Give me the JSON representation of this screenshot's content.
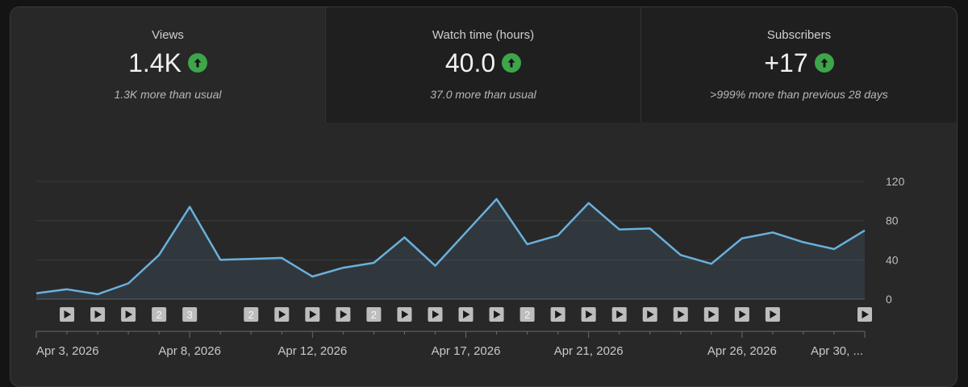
{
  "metrics": [
    {
      "title": "Views",
      "value": "1.4K",
      "trend": "up",
      "sub": "1.3K more than usual",
      "selected": true
    },
    {
      "title": "Watch time (hours)",
      "value": "40.0",
      "trend": "up",
      "sub": "37.0 more than usual",
      "selected": false
    },
    {
      "title": "Subscribers",
      "value": "+17",
      "trend": "up",
      "sub": ">999% more than previous 28 days",
      "selected": false
    }
  ],
  "colors": {
    "line": "#6ab0dc",
    "up": "#3ea54a",
    "grid": "#3a3a3a",
    "marker": "#bdbdbd"
  },
  "chart_data": {
    "type": "area",
    "x": [
      "Apr 3, 2026",
      "Apr 4, 2026",
      "Apr 5, 2026",
      "Apr 6, 2026",
      "Apr 7, 2026",
      "Apr 8, 2026",
      "Apr 9, 2026",
      "Apr 10, 2026",
      "Apr 11, 2026",
      "Apr 12, 2026",
      "Apr 13, 2026",
      "Apr 14, 2026",
      "Apr 15, 2026",
      "Apr 16, 2026",
      "Apr 17, 2026",
      "Apr 18, 2026",
      "Apr 19, 2026",
      "Apr 20, 2026",
      "Apr 21, 2026",
      "Apr 22, 2026",
      "Apr 23, 2026",
      "Apr 24, 2026",
      "Apr 25, 2026",
      "Apr 26, 2026",
      "Apr 27, 2026",
      "Apr 28, 2026",
      "Apr 29, 2026",
      "Apr 30, 2026"
    ],
    "series": [
      {
        "values": [
          6,
          10,
          5,
          16,
          45,
          94,
          40,
          41,
          42,
          23,
          32,
          37,
          63,
          34,
          68,
          102,
          56,
          65,
          98,
          71,
          72,
          45,
          36,
          62,
          68,
          58,
          51,
          70
        ]
      }
    ],
    "ylim": [
      0,
      120
    ],
    "yticks": [
      "0",
      "40",
      "80",
      "120"
    ],
    "y_axis_position": "right",
    "grid": true,
    "xtick_labels": [
      {
        "index": 0,
        "label": "Apr 3, 2026"
      },
      {
        "index": 5,
        "label": "Apr 8, 2026"
      },
      {
        "index": 9,
        "label": "Apr 12, 2026"
      },
      {
        "index": 14,
        "label": "Apr 17, 2026"
      },
      {
        "index": 18,
        "label": "Apr 21, 2026"
      },
      {
        "index": 23,
        "label": "Apr 26, 2026"
      },
      {
        "index": 27,
        "label": "Apr 30, ..."
      }
    ],
    "markers": [
      {
        "index": 1,
        "kind": "play"
      },
      {
        "index": 2,
        "kind": "play"
      },
      {
        "index": 3,
        "kind": "play"
      },
      {
        "index": 4,
        "kind": "count",
        "label": "2"
      },
      {
        "index": 5,
        "kind": "count",
        "label": "3"
      },
      {
        "index": 7,
        "kind": "count",
        "label": "2"
      },
      {
        "index": 8,
        "kind": "play"
      },
      {
        "index": 9,
        "kind": "play"
      },
      {
        "index": 10,
        "kind": "play"
      },
      {
        "index": 11,
        "kind": "count",
        "label": "2"
      },
      {
        "index": 12,
        "kind": "play"
      },
      {
        "index": 13,
        "kind": "play"
      },
      {
        "index": 14,
        "kind": "play"
      },
      {
        "index": 15,
        "kind": "play"
      },
      {
        "index": 16,
        "kind": "count",
        "label": "2"
      },
      {
        "index": 17,
        "kind": "play"
      },
      {
        "index": 18,
        "kind": "play"
      },
      {
        "index": 19,
        "kind": "play"
      },
      {
        "index": 20,
        "kind": "play"
      },
      {
        "index": 21,
        "kind": "play"
      },
      {
        "index": 22,
        "kind": "play"
      },
      {
        "index": 23,
        "kind": "play"
      },
      {
        "index": 24,
        "kind": "play"
      },
      {
        "index": 27,
        "kind": "play"
      }
    ]
  }
}
